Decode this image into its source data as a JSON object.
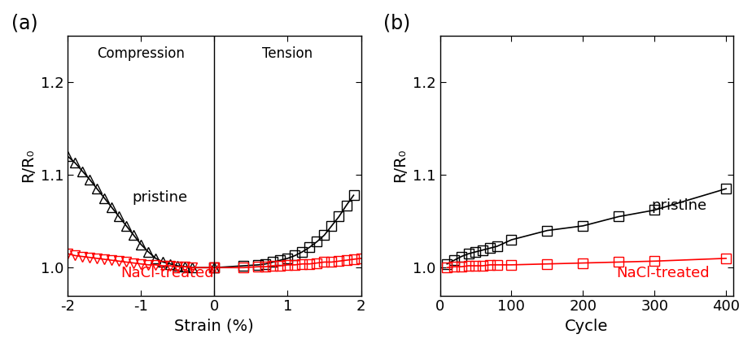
{
  "chart_data": [
    {
      "type": "line",
      "title": "(a)",
      "x_label": "Strain (%)",
      "y_label": "R/R₀",
      "xlim": [
        -2,
        2
      ],
      "xticks": [
        -2,
        -1,
        0,
        1,
        2
      ],
      "ylim": [
        0.97,
        1.25
      ],
      "yticks": [
        1.0,
        1.1,
        1.2
      ],
      "annotations": [
        "Compression",
        "Tension"
      ],
      "series": [
        {
          "name": "pristine",
          "color": "#000000",
          "marker": "triangle_up",
          "line_style": "solid",
          "x": [
            -2.0,
            -1.9,
            -1.8,
            -1.7,
            -1.6,
            -1.5,
            -1.4,
            -1.3,
            -1.2,
            -1.1,
            -1.0,
            -0.9,
            -0.8,
            -0.7,
            -0.6,
            -0.5,
            -0.4,
            -0.3,
            0.0
          ],
          "values": [
            1.12,
            1.113,
            1.104,
            1.095,
            1.085,
            1.075,
            1.065,
            1.055,
            1.045,
            1.035,
            1.025,
            1.017,
            1.01,
            1.006,
            1.004,
            1.002,
            1.001,
            1.0,
            1.0
          ]
        },
        {
          "name": "pristine",
          "color": "#000000",
          "marker": "square",
          "line_style": "solid",
          "x": [
            0.0,
            0.4,
            0.6,
            0.7,
            0.8,
            0.9,
            1.0,
            1.1,
            1.2,
            1.3,
            1.4,
            1.5,
            1.6,
            1.7,
            1.8,
            1.9
          ],
          "values": [
            1.0,
            1.002,
            1.003,
            1.004,
            1.006,
            1.008,
            1.01,
            1.013,
            1.017,
            1.022,
            1.028,
            1.035,
            1.045,
            1.055,
            1.067,
            1.078
          ]
        },
        {
          "name": "NaCl-treated",
          "color": "#ff0000",
          "marker": "triangle_down",
          "line_style": "solid",
          "x": [
            -2.0,
            -1.9,
            -1.8,
            -1.7,
            -1.6,
            -1.5,
            -1.4,
            -1.3,
            -1.2,
            -1.1,
            -1.0,
            -0.9,
            -0.8,
            -0.7,
            -0.6,
            -0.5,
            -0.4,
            -0.3,
            0.0
          ],
          "values": [
            1.015,
            1.013,
            1.012,
            1.011,
            1.01,
            1.009,
            1.008,
            1.007,
            1.006,
            1.005,
            1.004,
            1.003,
            1.003,
            1.002,
            1.002,
            1.001,
            1.001,
            1.0,
            1.0
          ]
        },
        {
          "name": "NaCl-treated",
          "color": "#ff0000",
          "marker": "square",
          "line_style": "solid",
          "x": [
            0.0,
            0.4,
            0.6,
            0.7,
            0.8,
            0.9,
            1.0,
            1.1,
            1.2,
            1.3,
            1.4,
            1.5,
            1.6,
            1.7,
            1.8,
            1.9,
            2.0
          ],
          "values": [
            1.0,
            1.0,
            1.001,
            1.001,
            1.002,
            1.002,
            1.003,
            1.003,
            1.004,
            1.004,
            1.005,
            1.006,
            1.006,
            1.007,
            1.008,
            1.009,
            1.01
          ]
        }
      ]
    },
    {
      "type": "line",
      "title": "(b)",
      "x_label": "Cycle",
      "y_label": "R/R₀",
      "xlim": [
        0,
        410
      ],
      "xticks": [
        0,
        100,
        200,
        300,
        400
      ],
      "ylim": [
        0.97,
        1.25
      ],
      "yticks": [
        1.0,
        1.1,
        1.2
      ],
      "series": [
        {
          "name": "pristine",
          "color": "#000000",
          "marker": "square",
          "line_style": "solid",
          "x": [
            10,
            20,
            30,
            40,
            50,
            60,
            70,
            80,
            100,
            150,
            200,
            250,
            300,
            400
          ],
          "values": [
            1.004,
            1.008,
            1.012,
            1.015,
            1.017,
            1.019,
            1.021,
            1.023,
            1.03,
            1.04,
            1.045,
            1.055,
            1.062,
            1.085
          ]
        },
        {
          "name": "NaCl-treated",
          "color": "#ff0000",
          "marker": "square",
          "line_style": "solid",
          "x": [
            10,
            20,
            30,
            40,
            50,
            60,
            70,
            80,
            100,
            150,
            200,
            250,
            300,
            400
          ],
          "values": [
            1.0,
            1.001,
            1.001,
            1.002,
            1.002,
            1.002,
            1.003,
            1.003,
            1.003,
            1.004,
            1.005,
            1.006,
            1.007,
            1.01
          ]
        }
      ]
    }
  ]
}
